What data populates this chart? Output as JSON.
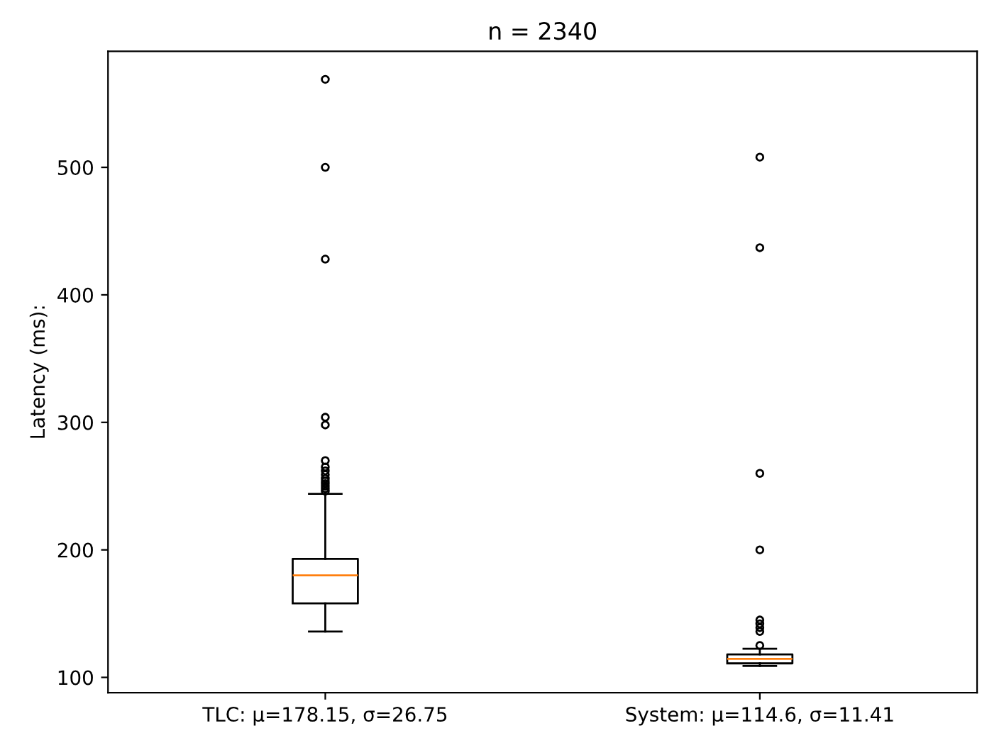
{
  "chart_data": {
    "type": "box",
    "title": "n = 2340",
    "ylabel": "Latency (ms):",
    "categories": [
      "TLC: μ=178.15, σ=26.75",
      "System: μ=114.6, σ=11.41"
    ],
    "boxes": [
      {
        "low": 136,
        "q1": 158,
        "median": 180,
        "q3": 193,
        "high": 244,
        "outliers": [
          569,
          500,
          428,
          304,
          298,
          270,
          265,
          262,
          259,
          256,
          254,
          252,
          250,
          248,
          246
        ]
      },
      {
        "low": 109,
        "q1": 111,
        "median": 114.5,
        "q3": 118,
        "high": 122.5,
        "outliers": [
          508,
          437,
          260,
          200,
          145,
          142,
          139,
          136,
          125
        ]
      }
    ],
    "ylim": [
      88,
      591
    ],
    "yticks": [
      100,
      200,
      300,
      400,
      500
    ],
    "grid": false
  }
}
